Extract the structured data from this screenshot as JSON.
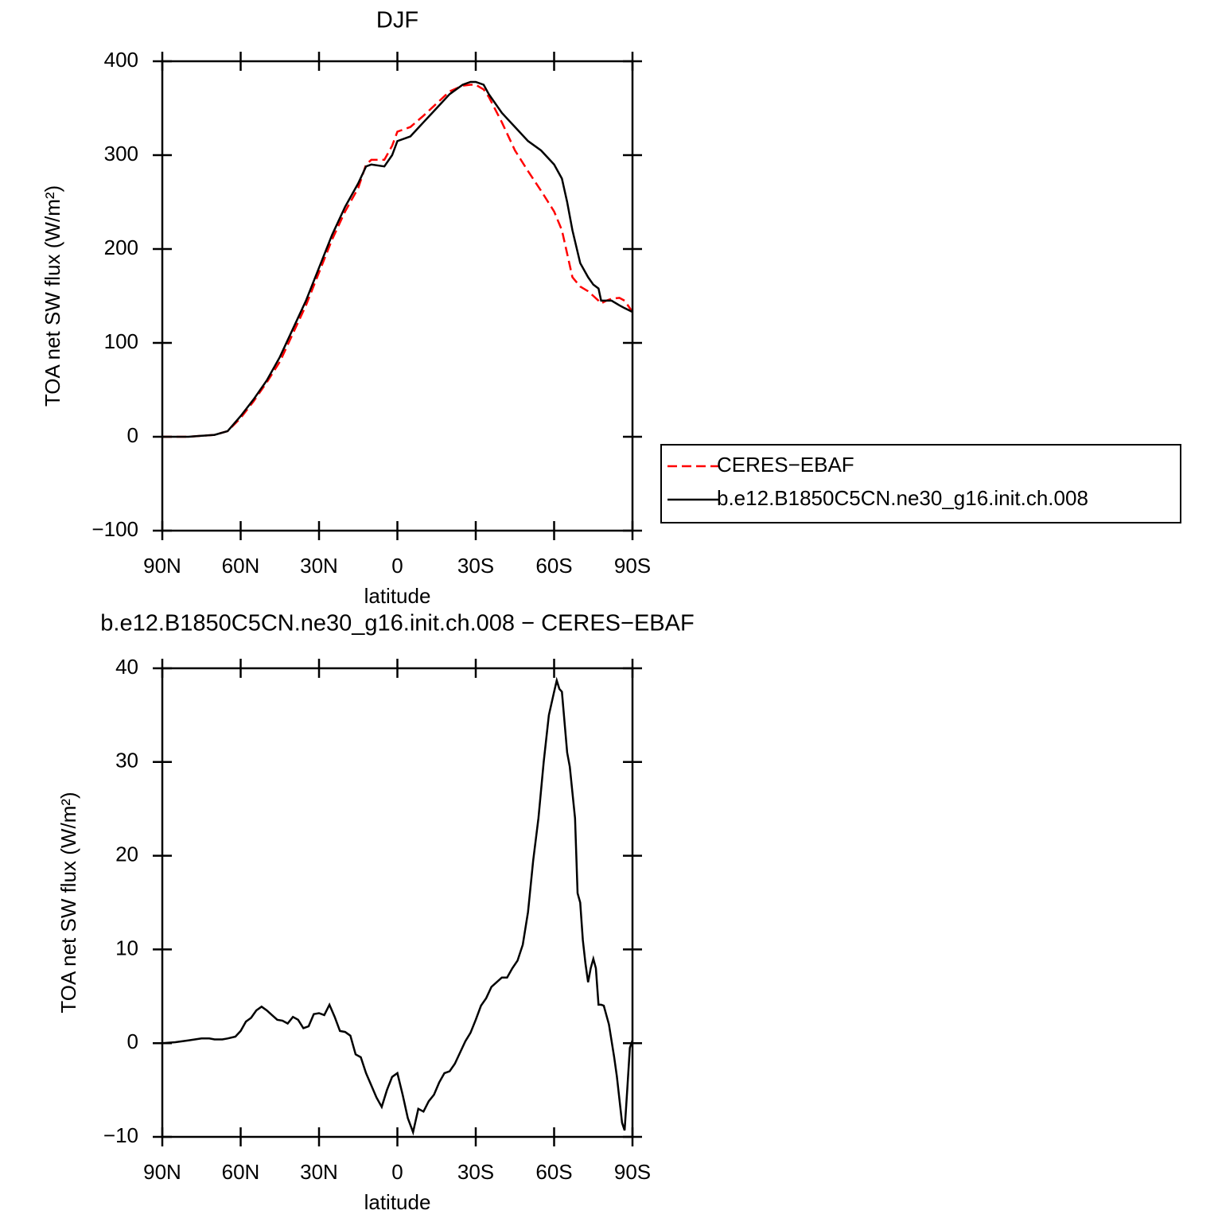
{
  "chart_data": [
    {
      "type": "line",
      "title": "DJF",
      "xlabel": "latitude",
      "ylabel": "TOA net SW flux (W/m²)",
      "x": [
        90,
        80,
        70,
        65,
        60,
        55,
        50,
        45,
        40,
        35,
        30,
        25,
        20,
        15,
        12,
        10,
        5,
        2,
        0,
        -3,
        -5,
        -10,
        -15,
        -20,
        -25,
        -28,
        -30,
        -33,
        -35,
        -40,
        -45,
        -50,
        -55,
        -60,
        -63,
        -65,
        -67,
        -70,
        -73,
        -75,
        -77,
        -78,
        -80,
        -82,
        -85,
        -87,
        -90
      ],
      "series": [
        {
          "name": "CERES−EBAF",
          "color": "#ff0000",
          "style": "dashed",
          "values": [
            0,
            0,
            2,
            6,
            20,
            38,
            58,
            80,
            110,
            140,
            175,
            210,
            240,
            265,
            290,
            295,
            295,
            310,
            325,
            328,
            330,
            342,
            355,
            368,
            374,
            375,
            375,
            370,
            362,
            335,
            305,
            283,
            262,
            240,
            220,
            195,
            170,
            160,
            155,
            150,
            145,
            142,
            145,
            147,
            148,
            145,
            133
          ]
        },
        {
          "name": "b.e12.B1850C5CN.ne30_g16.init.ch.008",
          "color": "#000000",
          "style": "solid",
          "values": [
            0,
            0,
            2,
            6,
            22,
            40,
            60,
            85,
            115,
            145,
            180,
            215,
            245,
            270,
            288,
            290,
            288,
            300,
            315,
            318,
            320,
            335,
            350,
            365,
            375,
            378,
            378,
            375,
            365,
            345,
            330,
            315,
            305,
            290,
            275,
            250,
            220,
            185,
            170,
            162,
            158,
            145,
            145,
            145,
            140,
            137,
            133
          ]
        }
      ],
      "xlim": [
        90,
        -90
      ],
      "xticks": [
        {
          "value": 90,
          "label": "90N"
        },
        {
          "value": 60,
          "label": "60N"
        },
        {
          "value": 30,
          "label": "30N"
        },
        0,
        {
          "value": -30,
          "label": "30S"
        },
        {
          "value": -60,
          "label": "60S"
        },
        {
          "value": -90,
          "label": "90S"
        }
      ],
      "ylim": [
        -100,
        400
      ],
      "yticks": [
        {
          "value": -100,
          "label": "−100"
        },
        0,
        100,
        200,
        300,
        400
      ],
      "legend": "right"
    },
    {
      "type": "line",
      "title": "b.e12.B1850C5CN.ne30_g16.init.ch.008 − CERES−EBAF",
      "xlabel": "latitude",
      "ylabel": "TOA net SW flux (W/m²)",
      "x": [
        90,
        85,
        80,
        75,
        72,
        70,
        67,
        65,
        62,
        60,
        58,
        56,
        54,
        52,
        50,
        48,
        46,
        44,
        42,
        40,
        38,
        36,
        34,
        32,
        30,
        28,
        26,
        24,
        22,
        20,
        18,
        16,
        14,
        12,
        10,
        8,
        6,
        4,
        2,
        0,
        -2,
        -4,
        -6,
        -8,
        -10,
        -12,
        -14,
        -16,
        -18,
        -20,
        -22,
        -24,
        -26,
        -28,
        -30,
        -32,
        -34,
        -36,
        -38,
        -40,
        -42,
        -44,
        -46,
        -48,
        -50,
        -52,
        -54,
        -56,
        -58,
        -60,
        -61,
        -62,
        -63,
        -65,
        -66,
        -68,
        -69,
        -70,
        -71,
        -72,
        -73,
        -74,
        -75,
        -76,
        -77,
        -78,
        -79,
        -81,
        -83,
        -84,
        -86,
        -87,
        -88,
        -89,
        -90
      ],
      "series": [
        {
          "name": null,
          "color": "#000000",
          "style": "solid",
          "values": [
            0,
            0.1,
            0.3,
            0.5,
            0.5,
            0.4,
            0.4,
            0.5,
            0.7,
            1.3,
            2.3,
            2.7,
            3.5,
            3.9,
            3.5,
            3.0,
            2.5,
            2.4,
            2.1,
            2.8,
            2.5,
            1.6,
            1.8,
            3.1,
            3.2,
            3.0,
            4.1,
            2.8,
            1.3,
            1.2,
            0.8,
            -1.2,
            -1.5,
            -3.2,
            -4.5,
            -5.8,
            -6.8,
            -5.0,
            -3.6,
            -3.2,
            -5.5,
            -8.0,
            -9.5,
            -7.0,
            -7.3,
            -6.2,
            -5.5,
            -4.2,
            -3.2,
            -3.0,
            -2.2,
            -1.0,
            0.2,
            1.1,
            2.5,
            4.0,
            4.8,
            6.0,
            6.5,
            7.0,
            7.0,
            8.0,
            8.8,
            10.5,
            14,
            19.5,
            24,
            30,
            35,
            37.5,
            38.7,
            37.8,
            37.5,
            31,
            29.5,
            24,
            16,
            15,
            11,
            8.5,
            6.5,
            8,
            9,
            8,
            4.1,
            4.1,
            4,
            2,
            -1.5,
            -3.5,
            -8.5,
            -9.3,
            -5,
            -0.5,
            0.3
          ]
        }
      ],
      "xlim": [
        90,
        -90
      ],
      "xticks": [
        {
          "value": 90,
          "label": "90N"
        },
        {
          "value": 60,
          "label": "60N"
        },
        {
          "value": 30,
          "label": "30N"
        },
        0,
        {
          "value": -30,
          "label": "30S"
        },
        {
          "value": -60,
          "label": "60S"
        },
        {
          "value": -90,
          "label": "90S"
        }
      ],
      "ylim": [
        -10,
        40
      ],
      "yticks": [
        {
          "value": -10,
          "label": "−10"
        },
        0,
        10,
        20,
        30,
        40
      ]
    }
  ]
}
